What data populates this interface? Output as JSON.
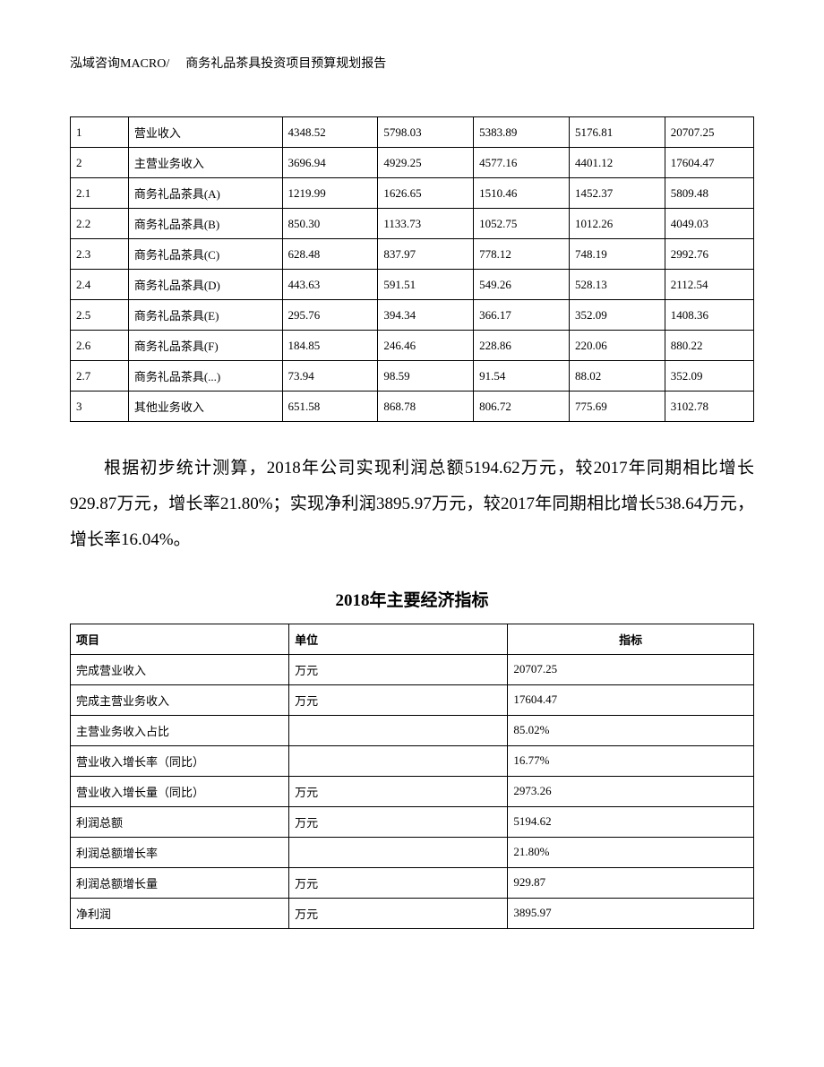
{
  "header": {
    "company": "泓域咨询MACRO/",
    "title": "商务礼品茶具投资项目预算规划报告"
  },
  "table1": {
    "rows": [
      [
        "1",
        "营业收入",
        "4348.52",
        "5798.03",
        "5383.89",
        "5176.81",
        "20707.25"
      ],
      [
        "2",
        "主营业务收入",
        "3696.94",
        "4929.25",
        "4577.16",
        "4401.12",
        "17604.47"
      ],
      [
        "2.1",
        "商务礼品茶具(A)",
        "1219.99",
        "1626.65",
        "1510.46",
        "1452.37",
        "5809.48"
      ],
      [
        "2.2",
        "商务礼品茶具(B)",
        "850.30",
        "1133.73",
        "1052.75",
        "1012.26",
        "4049.03"
      ],
      [
        "2.3",
        "商务礼品茶具(C)",
        "628.48",
        "837.97",
        "778.12",
        "748.19",
        "2992.76"
      ],
      [
        "2.4",
        "商务礼品茶具(D)",
        "443.63",
        "591.51",
        "549.26",
        "528.13",
        "2112.54"
      ],
      [
        "2.5",
        "商务礼品茶具(E)",
        "295.76",
        "394.34",
        "366.17",
        "352.09",
        "1408.36"
      ],
      [
        "2.6",
        "商务礼品茶具(F)",
        "184.85",
        "246.46",
        "228.86",
        "220.06",
        "880.22"
      ],
      [
        "2.7",
        "商务礼品茶具(...)",
        "73.94",
        "98.59",
        "91.54",
        "88.02",
        "352.09"
      ],
      [
        "3",
        "其他业务收入",
        "651.58",
        "868.78",
        "806.72",
        "775.69",
        "3102.78"
      ]
    ]
  },
  "paragraph_text": "根据初步统计测算，2018年公司实现利润总额5194.62万元，较2017年同期相比增长929.87万元，增长率21.80%；实现净利润3895.97万元，较2017年同期相比增长538.64万元，增长率16.04%。",
  "section_title": "2018年主要经济指标",
  "table2": {
    "headers": [
      "项目",
      "单位",
      "指标"
    ],
    "rows": [
      [
        "完成营业收入",
        "万元",
        "20707.25"
      ],
      [
        "完成主营业务收入",
        "万元",
        "17604.47"
      ],
      [
        "主营业务收入占比",
        "",
        "85.02%"
      ],
      [
        "营业收入增长率（同比）",
        "",
        "16.77%"
      ],
      [
        "营业收入增长量（同比）",
        "万元",
        "2973.26"
      ],
      [
        "利润总额",
        "万元",
        "5194.62"
      ],
      [
        "利润总额增长率",
        "",
        "21.80%"
      ],
      [
        "利润总额增长量",
        "万元",
        "929.87"
      ],
      [
        "净利润",
        "万元",
        "3895.97"
      ]
    ]
  }
}
